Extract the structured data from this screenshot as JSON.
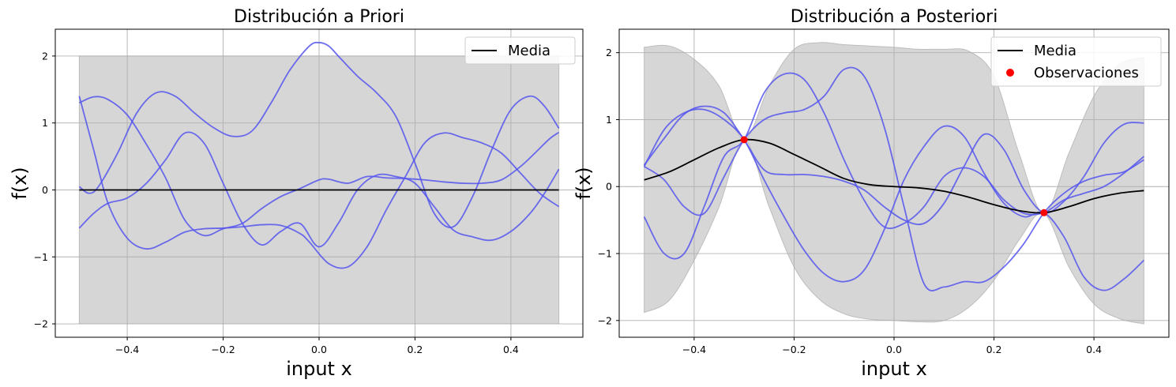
{
  "chart_data": [
    {
      "type": "line",
      "title": "Distribución a Priori",
      "xlabel": "input x",
      "ylabel": "f(x)",
      "xlim": [
        -0.55,
        0.55
      ],
      "ylim": [
        -2.2,
        2.4
      ],
      "xticks": [
        -0.4,
        -0.2,
        0.0,
        0.2,
        0.4
      ],
      "xtick_labels": [
        "−0.4",
        "−0.2",
        "0.0",
        "0.2",
        "0.4"
      ],
      "yticks": [
        -2,
        -1,
        0,
        1,
        2
      ],
      "ytick_labels": [
        "−2",
        "−1",
        "0",
        "1",
        "2"
      ],
      "grid": true,
      "legend_position": "top-right",
      "legend": [
        {
          "label": "Media",
          "kind": "line",
          "color": "#000000"
        }
      ],
      "mean": {
        "x": [
          -0.5,
          0.5
        ],
        "y": [
          0,
          0
        ],
        "color": "#000000"
      },
      "band": {
        "x": [
          -0.5,
          0.5
        ],
        "lower": [
          -2,
          -2
        ],
        "upper": [
          2,
          2
        ],
        "color": "#d6d6d6"
      },
      "samples_color": "#5555ee",
      "samples": [
        {
          "x": [
            -0.5,
            -0.47,
            -0.44,
            -0.4,
            -0.36,
            -0.32,
            -0.28,
            -0.24,
            -0.2,
            -0.16,
            -0.12,
            -0.08,
            -0.04,
            0.0,
            0.02,
            0.06,
            0.1,
            0.14,
            0.18,
            0.22,
            0.26,
            0.3,
            0.34,
            0.38,
            0.42,
            0.45,
            0.48,
            0.5
          ],
          "y": [
            1.3,
            1.39,
            1.35,
            1.12,
            0.68,
            0.18,
            -0.45,
            -0.68,
            -0.58,
            -0.5,
            -0.28,
            -0.1,
            0.02,
            0.15,
            0.16,
            0.1,
            0.2,
            0.18,
            0.17,
            0.15,
            0.12,
            0.1,
            0.1,
            0.15,
            0.35,
            0.55,
            0.76,
            0.86
          ]
        },
        {
          "x": [
            -0.5,
            -0.47,
            -0.44,
            -0.4,
            -0.36,
            -0.32,
            -0.28,
            -0.24,
            -0.2,
            -0.16,
            -0.12,
            -0.08,
            -0.04,
            0.0,
            0.04,
            0.08,
            0.12,
            0.16,
            0.2,
            0.24,
            0.28,
            0.32,
            0.36,
            0.4,
            0.44,
            0.47,
            0.5
          ],
          "y": [
            -0.57,
            -0.35,
            -0.2,
            -0.12,
            0.1,
            0.45,
            0.85,
            0.7,
            0.1,
            -0.5,
            -0.82,
            -0.62,
            -0.5,
            -0.85,
            -0.5,
            0.0,
            0.22,
            0.2,
            0.1,
            -0.25,
            -0.6,
            -0.7,
            -0.75,
            -0.62,
            -0.35,
            -0.05,
            0.31
          ]
        },
        {
          "x": [
            -0.5,
            -0.47,
            -0.44,
            -0.4,
            -0.36,
            -0.32,
            -0.28,
            -0.24,
            -0.2,
            -0.16,
            -0.12,
            -0.08,
            -0.04,
            -0.02,
            0.02,
            0.06,
            0.1,
            0.14,
            0.18,
            0.22,
            0.26,
            0.3,
            0.34,
            0.38,
            0.42,
            0.46,
            0.5
          ],
          "y": [
            1.4,
            0.6,
            -0.2,
            -0.72,
            -0.88,
            -0.78,
            -0.63,
            -0.58,
            -0.57,
            -0.55,
            -0.52,
            -0.53,
            -0.65,
            -0.78,
            -1.1,
            -1.15,
            -0.85,
            -0.3,
            0.2,
            0.7,
            0.85,
            0.78,
            0.7,
            0.55,
            0.25,
            -0.05,
            -0.25
          ]
        },
        {
          "x": [
            -0.5,
            -0.48,
            -0.46,
            -0.42,
            -0.38,
            -0.34,
            -0.3,
            -0.26,
            -0.22,
            -0.18,
            -0.14,
            -0.1,
            -0.06,
            -0.02,
            0.0,
            0.02,
            0.04,
            0.08,
            0.12,
            0.16,
            0.2,
            0.24,
            0.28,
            0.32,
            0.36,
            0.4,
            0.44,
            0.47,
            0.5
          ],
          "y": [
            0.05,
            -0.05,
            0.05,
            0.55,
            1.15,
            1.45,
            1.4,
            1.15,
            0.93,
            0.8,
            0.88,
            1.3,
            1.8,
            2.15,
            2.2,
            2.15,
            2.0,
            1.7,
            1.45,
            1.1,
            0.4,
            -0.35,
            -0.55,
            -0.1,
            0.6,
            1.2,
            1.4,
            1.25,
            0.92
          ]
        }
      ]
    },
    {
      "type": "line",
      "title": "Distribución a Posteriori",
      "xlabel": "input x",
      "ylabel": "f(x)",
      "xlim": [
        -0.55,
        0.55
      ],
      "ylim": [
        -2.25,
        2.35
      ],
      "xticks": [
        -0.4,
        -0.2,
        0.0,
        0.2,
        0.4
      ],
      "xtick_labels": [
        "−0.4",
        "−0.2",
        "0.0",
        "0.2",
        "0.4"
      ],
      "yticks": [
        -2,
        -1,
        0,
        1,
        2
      ],
      "ytick_labels": [
        "−2",
        "−1",
        "0",
        "1",
        "2"
      ],
      "grid": true,
      "legend_position": "top-right",
      "legend": [
        {
          "label": "Media",
          "kind": "line",
          "color": "#000000"
        },
        {
          "label": "Observaciones",
          "kind": "dot",
          "color": "#ff0000"
        }
      ],
      "mean": {
        "x": [
          -0.5,
          -0.45,
          -0.4,
          -0.35,
          -0.3,
          -0.25,
          -0.2,
          -0.15,
          -0.1,
          -0.05,
          0.0,
          0.05,
          0.1,
          0.15,
          0.2,
          0.25,
          0.3,
          0.35,
          0.4,
          0.45,
          0.5
        ],
        "y": [
          0.1,
          0.22,
          0.4,
          0.58,
          0.7,
          0.65,
          0.48,
          0.3,
          0.12,
          0.03,
          0.0,
          -0.02,
          -0.07,
          -0.16,
          -0.27,
          -0.36,
          -0.39,
          -0.3,
          -0.18,
          -0.1,
          -0.06
        ],
        "color": "#000000"
      },
      "band": {
        "x": [
          -0.5,
          -0.45,
          -0.4,
          -0.35,
          -0.3,
          -0.25,
          -0.2,
          -0.15,
          -0.1,
          -0.05,
          0.0,
          0.05,
          0.1,
          0.15,
          0.2,
          0.25,
          0.3,
          0.35,
          0.4,
          0.45,
          0.5
        ],
        "lower": [
          -1.88,
          -1.7,
          -1.1,
          -0.3,
          0.7,
          -0.3,
          -1.2,
          -1.68,
          -1.9,
          -1.98,
          -2.0,
          -2.02,
          -2.0,
          -1.8,
          -1.4,
          -0.8,
          -0.4,
          -1.2,
          -1.75,
          -1.97,
          -2.05
        ],
        "upper": [
          2.08,
          2.1,
          1.9,
          1.5,
          0.7,
          1.5,
          2.05,
          2.15,
          2.12,
          2.1,
          2.08,
          2.05,
          2.05,
          2.02,
          1.65,
          0.5,
          -0.4,
          0.5,
          1.35,
          1.82,
          1.93
        ],
        "color": "#d6d6d6"
      },
      "observations": {
        "x": [
          -0.3,
          0.3
        ],
        "y": [
          0.7,
          -0.39
        ],
        "color": "#ff0000"
      },
      "samples_color": "#5555ee",
      "samples": [
        {
          "x": [
            -0.5,
            -0.46,
            -0.42,
            -0.38,
            -0.34,
            -0.3,
            -0.26,
            -0.22,
            -0.18,
            -0.14,
            -0.1,
            -0.06,
            -0.02,
            0.02,
            0.06,
            0.1,
            0.14,
            0.18,
            0.22,
            0.26,
            0.3,
            0.34,
            0.38,
            0.42,
            0.46,
            0.5
          ],
          "y": [
            0.32,
            0.72,
            1.08,
            1.2,
            1.1,
            0.7,
            0.25,
            0.18,
            0.18,
            0.15,
            0.08,
            -0.05,
            -0.3,
            -0.5,
            -0.55,
            -0.25,
            0.3,
            0.78,
            0.55,
            -0.05,
            -0.39,
            -0.22,
            0.15,
            0.65,
            0.93,
            0.95
          ]
        },
        {
          "x": [
            -0.5,
            -0.46,
            -0.42,
            -0.38,
            -0.34,
            -0.3,
            -0.26,
            -0.22,
            -0.18,
            -0.14,
            -0.1,
            -0.06,
            -0.02,
            0.02,
            0.06,
            0.1,
            0.14,
            0.18,
            0.22,
            0.26,
            0.3,
            0.34,
            0.38,
            0.42,
            0.46,
            0.5
          ],
          "y": [
            0.3,
            0.1,
            -0.3,
            -0.4,
            0.15,
            0.7,
            1.0,
            1.1,
            1.15,
            1.35,
            1.75,
            1.65,
            0.9,
            -0.3,
            -1.45,
            -1.5,
            -1.42,
            -1.42,
            -1.2,
            -0.85,
            -0.39,
            -0.1,
            0.08,
            0.17,
            0.22,
            0.4
          ]
        },
        {
          "x": [
            -0.5,
            -0.46,
            -0.42,
            -0.38,
            -0.34,
            -0.3,
            -0.26,
            -0.22,
            -0.18,
            -0.14,
            -0.1,
            -0.06,
            -0.02,
            0.02,
            0.06,
            0.1,
            0.14,
            0.18,
            0.22,
            0.26,
            0.3,
            0.34,
            0.38,
            0.42,
            0.46,
            0.5
          ],
          "y": [
            -0.45,
            -1.0,
            -1.0,
            -0.3,
            0.45,
            0.7,
            1.4,
            1.68,
            1.6,
            1.1,
            0.4,
            -0.2,
            -0.6,
            -0.55,
            -0.3,
            0.15,
            0.28,
            0.15,
            -0.2,
            -0.4,
            -0.39,
            -0.2,
            -0.1,
            0.0,
            0.2,
            0.45
          ]
        },
        {
          "x": [
            -0.5,
            -0.46,
            -0.42,
            -0.38,
            -0.34,
            -0.3,
            -0.26,
            -0.22,
            -0.18,
            -0.14,
            -0.1,
            -0.06,
            -0.02,
            0.02,
            0.06,
            0.1,
            0.14,
            0.18,
            0.22,
            0.26,
            0.3,
            0.34,
            0.38,
            0.42,
            0.46,
            0.5
          ],
          "y": [
            0.3,
            0.85,
            1.1,
            1.15,
            1.0,
            0.7,
            0.1,
            -0.45,
            -0.95,
            -1.3,
            -1.42,
            -1.25,
            -0.65,
            0.1,
            0.6,
            0.9,
            0.75,
            0.2,
            -0.25,
            -0.45,
            -0.39,
            -0.75,
            -1.35,
            -1.55,
            -1.38,
            -1.1
          ]
        }
      ]
    }
  ]
}
